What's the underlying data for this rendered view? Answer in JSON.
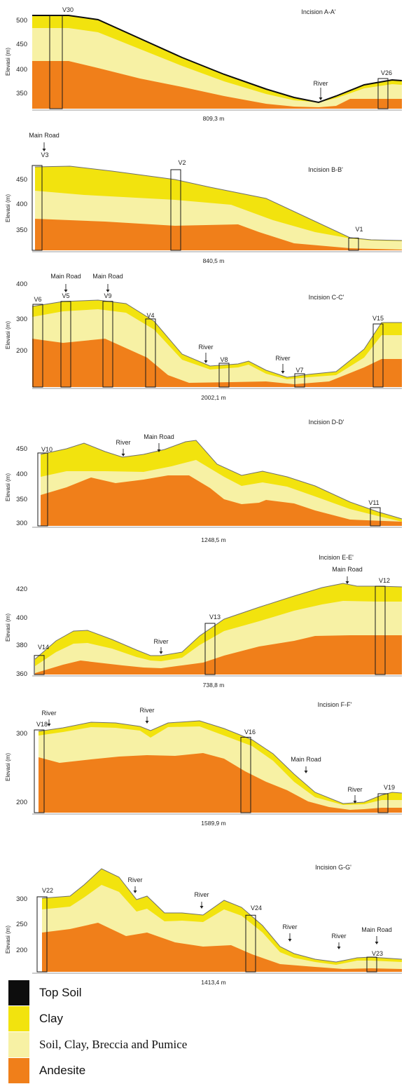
{
  "colors": {
    "topsoil": "#0d0d0d",
    "clay": "#f2e30e",
    "mix": "#f7f1a4",
    "andesite": "#f07f1a",
    "outline": "#6f6f6f",
    "base": "#f6f0c6"
  },
  "axis_title": "Elevasi (m)",
  "sections": [
    {
      "id": "A",
      "title": "Incision A-A'",
      "length": "809,3 m",
      "ticks": [
        "500",
        "450",
        "400",
        "350"
      ],
      "boreholes": [
        "V30",
        "V26"
      ],
      "annotations": [
        "River"
      ]
    },
    {
      "id": "B",
      "title": "Incision B-B'",
      "length": "840,5 m",
      "ticks": [
        "450",
        "400",
        "350"
      ],
      "boreholes": [
        "V3",
        "V2",
        "V1"
      ],
      "annotations": [
        "Main Road"
      ]
    },
    {
      "id": "C",
      "title": "Incision C-C'",
      "length": "2002,1 m",
      "ticks": [
        "400",
        "300",
        "200"
      ],
      "boreholes": [
        "V6",
        "V5",
        "V9",
        "V4",
        "V8",
        "V7",
        "V15"
      ],
      "annotations": [
        "Main Road",
        "Main Road",
        "River",
        "River"
      ]
    },
    {
      "id": "D",
      "title": "Incision D-D'",
      "length": "1248,5 m",
      "ticks": [
        "450",
        "400",
        "350",
        "300"
      ],
      "boreholes": [
        "V10",
        "V11"
      ],
      "annotations": [
        "River",
        "Main Road"
      ]
    },
    {
      "id": "E",
      "title": "Incision E-E'",
      "length": "738,8 m",
      "ticks": [
        "420",
        "400",
        "380",
        "360"
      ],
      "boreholes": [
        "V14",
        "V13",
        "V12"
      ],
      "annotations": [
        "River",
        "Main Road"
      ]
    },
    {
      "id": "F",
      "title": "Incision F-F'",
      "length": "1589,9 m",
      "ticks": [
        "300",
        "200"
      ],
      "boreholes": [
        "V18",
        "V16",
        "V19"
      ],
      "annotations": [
        "River",
        "River",
        "Main Road",
        "River"
      ]
    },
    {
      "id": "G",
      "title": "Incision G-G'",
      "length": "1413,4 m",
      "ticks": [
        "300",
        "250",
        "200"
      ],
      "boreholes": [
        "V22",
        "V24",
        "V23"
      ],
      "annotations": [
        "River",
        "River",
        "River",
        "River",
        "Main Road"
      ]
    }
  ],
  "legend": [
    {
      "key": "topsoil",
      "label": "Top Soil"
    },
    {
      "key": "clay",
      "label": "Clay"
    },
    {
      "key": "mix",
      "label": "Soil, Clay, Breccia and Pumice"
    },
    {
      "key": "andesite",
      "label": "Andesite"
    }
  ]
}
